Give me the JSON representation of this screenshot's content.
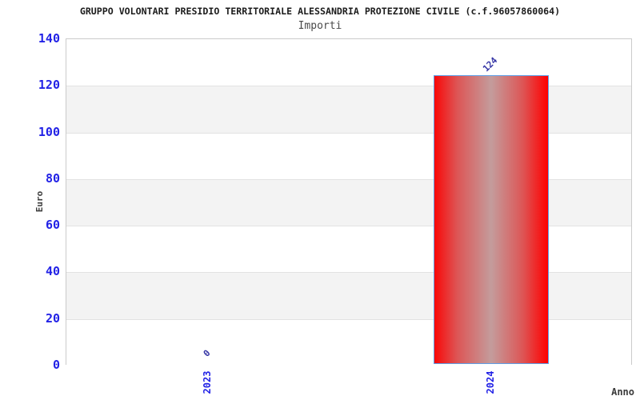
{
  "header": {
    "title": "GRUPPO VOLONTARI PRESIDIO TERRITORIALE ALESSANDRIA PROTEZIONE CIVILE (c.f.96057860064)",
    "subtitle": "Importi"
  },
  "chart_data": {
    "type": "bar",
    "title": "GRUPPO VOLONTARI PRESIDIO TERRITORIALE ALESSANDRIA PROTEZIONE CIVILE (c.f.96057860064)",
    "subtitle": "Importi",
    "categories": [
      "2023",
      "2024"
    ],
    "values": [
      0,
      124
    ],
    "data_labels": [
      "0",
      "124"
    ],
    "xlabel": "Anno",
    "ylabel": "Euro",
    "ylim": [
      0,
      140
    ],
    "yticks": [
      0,
      20,
      40,
      60,
      80,
      100,
      120,
      140
    ],
    "grid": "alternating-horizontal-bands",
    "legend": "none",
    "colors": {
      "bar_fill": "#ff0000",
      "bar_fill_edge": "#f90808",
      "bar_highlight": "#c49c9c",
      "bar_border": "#5e9ee6",
      "tick_text": "#2222e6",
      "value_label": "#3535a5",
      "band_gray": "#f3f3f3",
      "band_white": "#ffffff",
      "plot_border": "#cbcbcb",
      "title_text": "#1c1c1c",
      "subtitle_text": "#4a4a4a",
      "axis_label_text": "#3a3a3a"
    }
  }
}
